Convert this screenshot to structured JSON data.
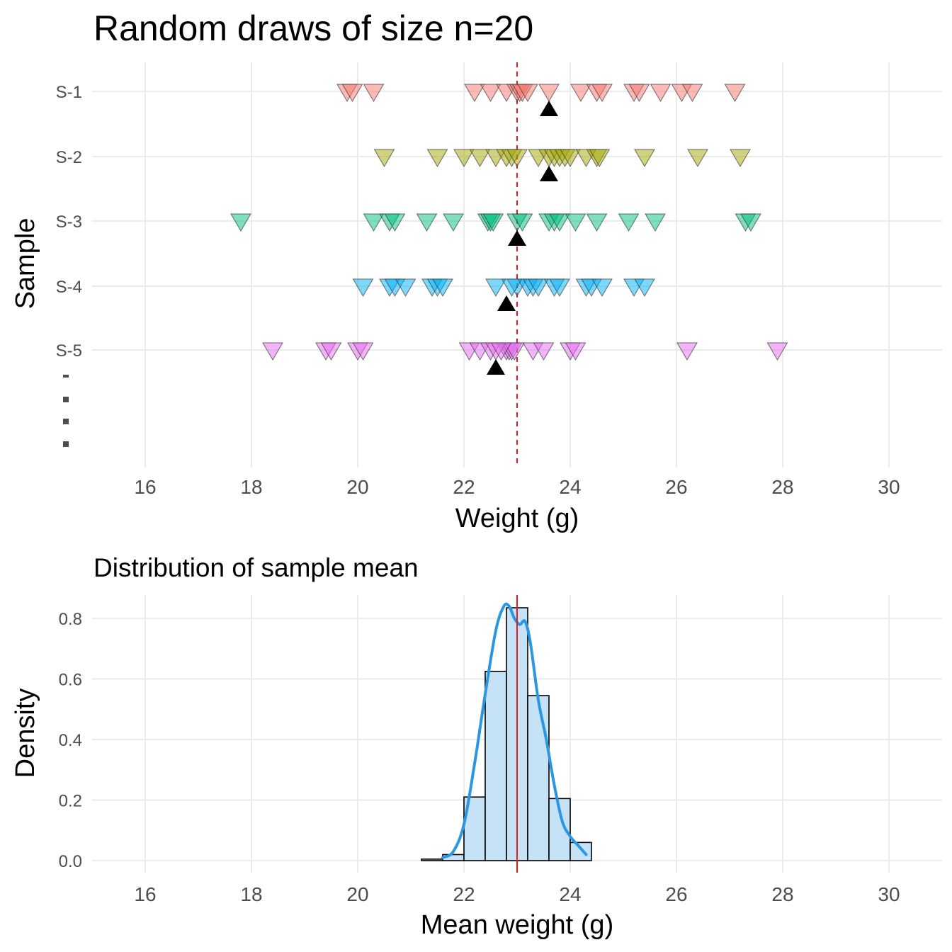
{
  "chart_data": [
    {
      "type": "scatter",
      "title": "Random draws of size n=20",
      "xlabel": "Weight (g)",
      "ylabel": "Sample",
      "xlim": [
        15,
        31
      ],
      "xticks": [
        16,
        18,
        20,
        22,
        24,
        26,
        28,
        30
      ],
      "yticks": [
        "S-1",
        "S-2",
        "S-3",
        "S-4",
        "S-5"
      ],
      "ellipsis": [
        ".",
        ".",
        ".",
        "."
      ],
      "reference_line": 23,
      "reference_color": "#e41a1c",
      "grid": true,
      "series": [
        {
          "label": "S-1",
          "color": "#f8766d",
          "mean": 23.6,
          "values": [
            19.8,
            19.9,
            20.3,
            22.2,
            22.5,
            22.8,
            23.0,
            23.05,
            23.1,
            23.2,
            23.6,
            24.2,
            24.5,
            24.6,
            25.2,
            25.3,
            25.7,
            26.1,
            26.3,
            27.1
          ]
        },
        {
          "label": "S-2",
          "color": "#a3a500",
          "mean": 23.6,
          "values": [
            20.5,
            21.5,
            22.0,
            22.3,
            22.6,
            22.8,
            22.9,
            23.0,
            23.4,
            23.6,
            23.7,
            23.8,
            23.9,
            24.0,
            24.3,
            24.5,
            24.55,
            25.4,
            26.4,
            27.2
          ]
        },
        {
          "label": "S-3",
          "color": "#00bf7d",
          "mean": 23.0,
          "values": [
            17.8,
            20.3,
            20.6,
            20.7,
            21.3,
            21.8,
            22.45,
            22.5,
            22.55,
            23.0,
            23.1,
            23.6,
            23.7,
            23.8,
            24.1,
            24.5,
            25.1,
            25.6,
            27.3,
            27.4
          ]
        },
        {
          "label": "S-4",
          "color": "#00b0f6",
          "mean": 22.8,
          "values": [
            20.1,
            20.6,
            20.7,
            20.9,
            21.4,
            21.5,
            21.6,
            22.6,
            23.0,
            23.2,
            23.3,
            23.4,
            23.7,
            23.8,
            24.3,
            24.4,
            24.6,
            25.2,
            25.4,
            22.9
          ]
        },
        {
          "label": "S-5",
          "color": "#e76bf3",
          "mean": 22.6,
          "values": [
            18.4,
            19.4,
            19.5,
            20.0,
            20.1,
            22.1,
            22.3,
            22.5,
            22.8,
            22.85,
            22.9,
            22.95,
            23.3,
            23.5,
            24.0,
            24.1,
            26.2,
            27.9,
            22.6,
            22.7
          ]
        }
      ]
    },
    {
      "type": "bar",
      "title": "Distribution of sample mean",
      "xlabel": "Mean weight (g)",
      "ylabel": "Density",
      "xlim": [
        15,
        31
      ],
      "ylim": [
        0,
        0.88
      ],
      "xticks": [
        16,
        18,
        20,
        22,
        24,
        26,
        28,
        30
      ],
      "yticks": [
        "0.0",
        "0.2",
        "0.4",
        "0.6",
        "0.8"
      ],
      "mean_line": 23,
      "mean_line_color": "#e41a1c",
      "bins": [
        {
          "x0": 21.2,
          "x1": 21.6,
          "density": 0.005
        },
        {
          "x0": 21.6,
          "x1": 22.0,
          "density": 0.02
        },
        {
          "x0": 22.0,
          "x1": 22.4,
          "density": 0.21
        },
        {
          "x0": 22.4,
          "x1": 22.8,
          "density": 0.625
        },
        {
          "x0": 22.8,
          "x1": 23.2,
          "density": 0.835
        },
        {
          "x0": 23.2,
          "x1": 23.6,
          "density": 0.545
        },
        {
          "x0": 23.6,
          "x1": 24.0,
          "density": 0.205
        },
        {
          "x0": 24.0,
          "x1": 24.4,
          "density": 0.06
        }
      ],
      "bar_fill": "#c6e2f7",
      "density_curve_color": "#2b97e3",
      "density_curve": {
        "x": [
          21.6,
          21.8,
          22.0,
          22.2,
          22.4,
          22.6,
          22.75,
          22.85,
          22.95,
          23.05,
          23.15,
          23.25,
          23.4,
          23.55,
          23.7,
          23.85,
          24.0,
          24.15,
          24.3
        ],
        "y": [
          0.01,
          0.03,
          0.12,
          0.32,
          0.55,
          0.76,
          0.84,
          0.84,
          0.8,
          0.78,
          0.79,
          0.72,
          0.53,
          0.4,
          0.25,
          0.13,
          0.08,
          0.05,
          0.02
        ]
      }
    }
  ]
}
